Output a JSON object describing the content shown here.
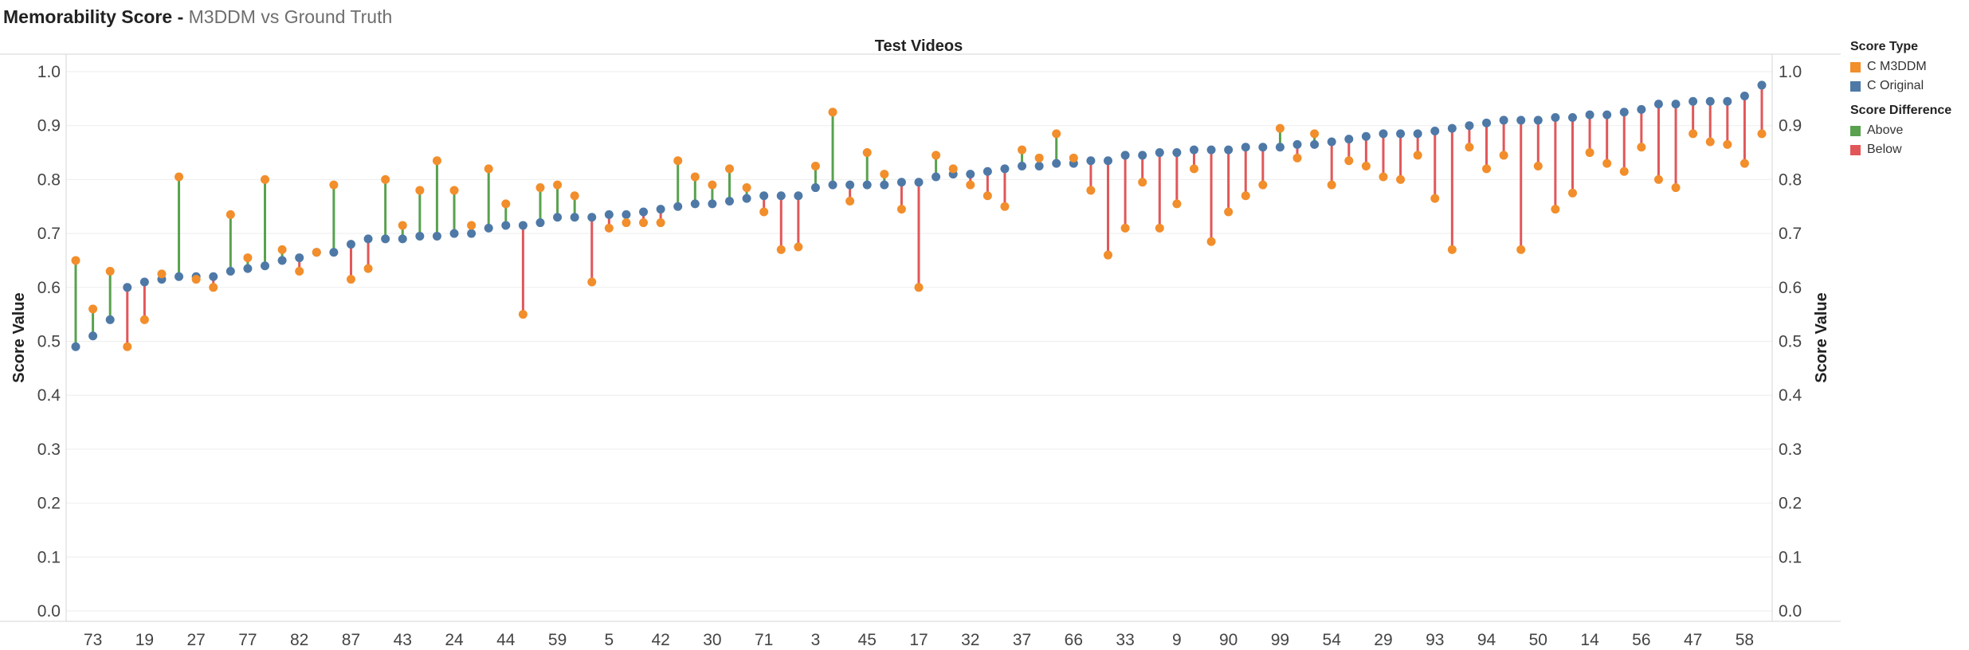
{
  "title": {
    "bold": "Memorability Score - ",
    "light": "M3DDM vs Ground Truth"
  },
  "colors": {
    "m3ddm": "#f28e2b",
    "original": "#4e79a7",
    "above": "#59a14f",
    "below": "#e15759"
  },
  "legend": {
    "score_type_title": "Score Type",
    "score_type_items": [
      "C M3DDM",
      "C Original"
    ],
    "diff_title": "Score Difference",
    "diff_items": [
      "Above",
      "Below"
    ]
  },
  "chart_data": {
    "type": "dot-plot",
    "title": "Test Videos",
    "ylabel_left": "Score Value",
    "ylabel_right": "Score Value",
    "ylim": [
      0,
      1.0
    ],
    "yticks": [
      "0.0",
      "0.1",
      "0.2",
      "0.3",
      "0.4",
      "0.5",
      "0.6",
      "0.7",
      "0.8",
      "0.9",
      "1.0"
    ],
    "xtick_labels": [
      "73",
      "19",
      "27",
      "77",
      "82",
      "87",
      "43",
      "24",
      "44",
      "59",
      "5",
      "42",
      "30",
      "71",
      "3",
      "45",
      "17",
      "32",
      "37",
      "66",
      "33",
      "9",
      "90",
      "99",
      "54",
      "29",
      "93",
      "94",
      "50",
      "14",
      "56",
      "47",
      "58"
    ],
    "series": [
      {
        "name": "C Original",
        "values": [
          0.49,
          0.51,
          0.54,
          0.6,
          0.61,
          0.615,
          0.62,
          0.62,
          0.62,
          0.63,
          0.635,
          0.64,
          0.65,
          0.655,
          0.665,
          0.665,
          0.68,
          0.69,
          0.69,
          0.69,
          0.695,
          0.695,
          0.7,
          0.7,
          0.71,
          0.715,
          0.715,
          0.72,
          0.73,
          0.73,
          0.73,
          0.735,
          0.735,
          0.74,
          0.745,
          0.75,
          0.755,
          0.755,
          0.76,
          0.765,
          0.77,
          0.77,
          0.77,
          0.785,
          0.79,
          0.79,
          0.79,
          0.79,
          0.795,
          0.795,
          0.805,
          0.81,
          0.81,
          0.815,
          0.82,
          0.825,
          0.825,
          0.83,
          0.83,
          0.835,
          0.835,
          0.845,
          0.845,
          0.85,
          0.85,
          0.855,
          0.855,
          0.855,
          0.86,
          0.86,
          0.86,
          0.865,
          0.865,
          0.87,
          0.875,
          0.88,
          0.885,
          0.885,
          0.885,
          0.89,
          0.895,
          0.9,
          0.905,
          0.91,
          0.91,
          0.91,
          0.915,
          0.915,
          0.92,
          0.92,
          0.925,
          0.93,
          0.94,
          0.94,
          0.945,
          0.945,
          0.945,
          0.955,
          0.975
        ]
      },
      {
        "name": "C M3DDM",
        "values": [
          0.65,
          0.56,
          0.63,
          0.49,
          0.54,
          0.625,
          0.805,
          0.615,
          0.6,
          0.735,
          0.655,
          0.8,
          0.67,
          0.63,
          0.665,
          0.79,
          0.615,
          0.635,
          0.8,
          0.715,
          0.78,
          0.835,
          0.78,
          0.715,
          0.82,
          0.755,
          0.55,
          0.785,
          0.79,
          0.77,
          0.61,
          0.71,
          0.72,
          0.72,
          0.72,
          0.835,
          0.805,
          0.79,
          0.82,
          0.785,
          0.74,
          0.67,
          0.675,
          0.825,
          0.925,
          0.76,
          0.85,
          0.81,
          0.745,
          0.6,
          0.845,
          0.82,
          0.79,
          0.77,
          0.75,
          0.855,
          0.84,
          0.885,
          0.84,
          0.78,
          0.66,
          0.71,
          0.795,
          0.71,
          0.755,
          0.82,
          0.685,
          0.74,
          0.77,
          0.79,
          0.895,
          0.84,
          0.885,
          0.79,
          0.835,
          0.825,
          0.805,
          0.8,
          0.845,
          0.765,
          0.67,
          0.86,
          0.82,
          0.845,
          0.67,
          0.825,
          0.745,
          0.775,
          0.85,
          0.83,
          0.815,
          0.86,
          0.8,
          0.785,
          0.885,
          0.87,
          0.865,
          0.83,
          0.885
        ]
      }
    ],
    "difference_legend": [
      "Above",
      "Below"
    ]
  }
}
